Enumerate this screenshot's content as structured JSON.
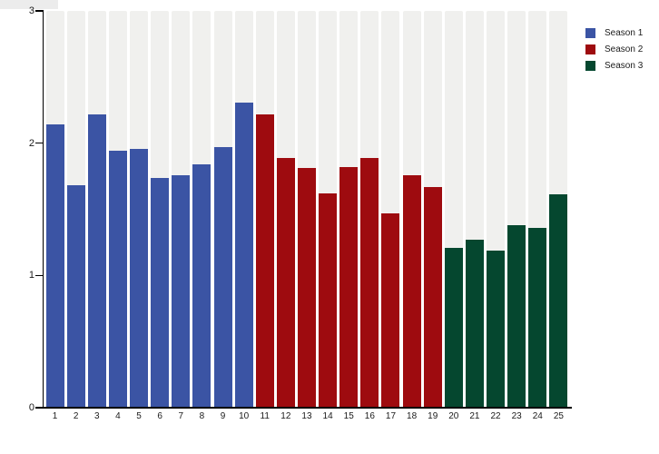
{
  "chart_data": {
    "type": "bar",
    "title": "",
    "xlabel": "",
    "ylabel": "",
    "categories": [
      "1",
      "2",
      "3",
      "4",
      "5",
      "6",
      "7",
      "8",
      "9",
      "10",
      "11",
      "12",
      "13",
      "14",
      "15",
      "16",
      "17",
      "18",
      "19",
      "20",
      "21",
      "22",
      "23",
      "24",
      "25"
    ],
    "series": [
      {
        "name": "Season 1",
        "color": "#3B54A4",
        "category_range": [
          1,
          10
        ],
        "values": [
          2.14,
          1.68,
          2.22,
          1.94,
          1.96,
          1.74,
          1.76,
          1.84,
          1.97,
          2.31
        ]
      },
      {
        "name": "Season 2",
        "color": "#9E0B0F",
        "category_range": [
          11,
          19
        ],
        "values": [
          2.22,
          1.89,
          1.81,
          1.62,
          1.82,
          1.89,
          1.47,
          1.76,
          1.67
        ]
      },
      {
        "name": "Season 3",
        "color": "#05472F",
        "category_range": [
          20,
          25
        ],
        "values": [
          1.21,
          1.27,
          1.19,
          1.38,
          1.36,
          1.61
        ]
      }
    ],
    "ylim": [
      0,
      3
    ],
    "yticks": [
      "0",
      "1",
      "2",
      "3"
    ],
    "grid": false,
    "legend_position": "top-right",
    "plot_band_color": "#F0F0EE",
    "background_color": "#FFFFFF",
    "axis_color": "#000000"
  },
  "legend": {
    "items": [
      {
        "label": "Season 1",
        "color": "#3B54A4"
      },
      {
        "label": "Season 2",
        "color": "#9E0B0F"
      },
      {
        "label": "Season 3",
        "color": "#05472F"
      }
    ]
  }
}
